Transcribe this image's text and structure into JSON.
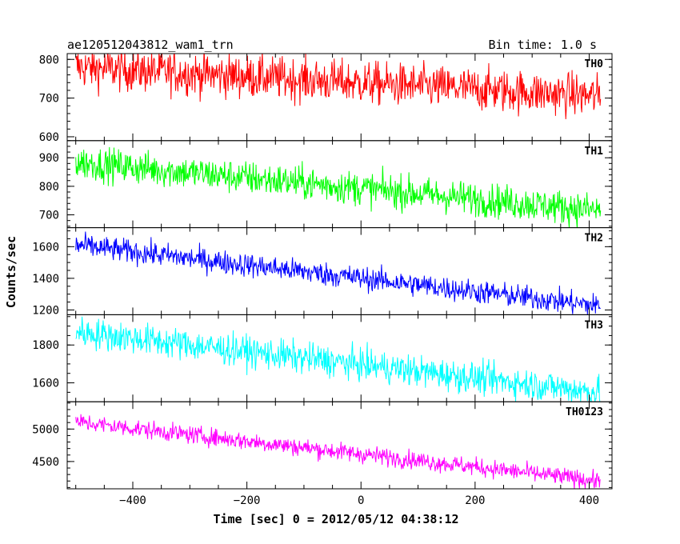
{
  "chart_data": {
    "type": "line",
    "title": "ae120512043812_wam1_trn",
    "subtitle": "Bin time: 1.0 s",
    "xlabel": "Time [sec] 0 = 2012/05/12 04:38:12",
    "ylabel": "Counts/sec",
    "xlim": [
      -515,
      440
    ],
    "x_ticks": [
      -400,
      -200,
      0,
      200,
      400
    ],
    "x_range": [
      -500,
      420
    ],
    "bin_time": 1.0,
    "panels": [
      {
        "name": "TH0",
        "color": "#ff0000",
        "ylim": [
          590,
          815
        ],
        "y_ticks": [
          600,
          700,
          800
        ],
        "y_tick_labels": [
          "600",
          "700",
          "800"
        ],
        "start": 780,
        "end": 705,
        "noise": 28
      },
      {
        "name": "TH1",
        "color": "#00ff00",
        "ylim": [
          655,
          960
        ],
        "y_ticks": [
          700,
          800,
          900
        ],
        "y_tick_labels": [
          "700",
          "800",
          "900"
        ],
        "start": 885,
        "end": 715,
        "noise": 30
      },
      {
        "name": "TH2",
        "color": "#0000ff",
        "ylim": [
          1170,
          1720
        ],
        "y_ticks": [
          1200,
          1400,
          1600
        ],
        "y_tick_labels": [
          "1200",
          "1400",
          "1600"
        ],
        "start": 1610,
        "end": 1225,
        "noise": 38
      },
      {
        "name": "TH3",
        "color": "#00ffff",
        "ylim": [
          1500,
          1960
        ],
        "y_ticks": [
          1600,
          1800
        ],
        "y_tick_labels": [
          "1600",
          "1800"
        ],
        "start": 1870,
        "end": 1550,
        "noise": 42
      },
      {
        "name": "TH0123",
        "color": "#ff00ff",
        "ylim": [
          4080,
          5420
        ],
        "y_ticks": [
          4500,
          5000
        ],
        "y_tick_labels": [
          "4500",
          "5000"
        ],
        "start": 5110,
        "end": 4200,
        "noise": 70
      }
    ]
  }
}
